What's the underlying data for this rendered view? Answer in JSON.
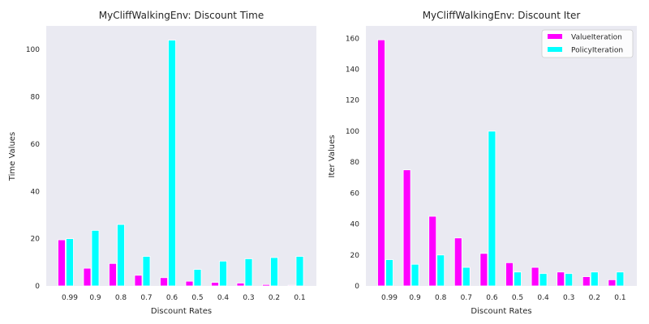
{
  "colors": {
    "value_iteration": "#ff00ff",
    "policy_iteration": "#00ffff",
    "plot_background": "#eaeaf2"
  },
  "chart_data": [
    {
      "type": "bar",
      "title": "MyCliffWalkingEnv: Discount Time",
      "xlabel": "Discount Rates",
      "ylabel": "Time Values",
      "categories": [
        "0.99",
        "0.9",
        "0.8",
        "0.7",
        "0.6",
        "0.5",
        "0.4",
        "0.3",
        "0.2",
        "0.1"
      ],
      "series": [
        {
          "values": [
            19.5,
            7.5,
            9.5,
            4.5,
            3.5,
            2,
            1.5,
            1.2,
            0.6,
            0.3
          ]
        },
        {
          "values": [
            20,
            23.5,
            26,
            12.5,
            104,
            7,
            10.5,
            11.5,
            12,
            12.5
          ]
        }
      ],
      "ylim": [
        0,
        110
      ],
      "yticks": [
        0,
        20,
        40,
        60,
        80,
        100
      ],
      "legend": false,
      "grid": false
    },
    {
      "type": "bar",
      "title": "MyCliffWalkingEnv: Discount Iter",
      "xlabel": "Discount Rates",
      "ylabel": "Iter Values",
      "categories": [
        "0.99",
        "0.9",
        "0.8",
        "0.7",
        "0.6",
        "0.5",
        "0.4",
        "0.3",
        "0.2",
        "0.1"
      ],
      "series": [
        {
          "name": "ValueIteration",
          "values": [
            159,
            75,
            45,
            31,
            21,
            15,
            12,
            9,
            6,
            4
          ]
        },
        {
          "name": "PolicyIteration",
          "values": [
            17,
            14,
            20,
            12,
            100,
            9,
            8,
            8,
            9,
            9
          ]
        }
      ],
      "ylim": [
        0,
        168
      ],
      "yticks": [
        0,
        20,
        40,
        60,
        80,
        100,
        120,
        140,
        160
      ],
      "legend": "top-right",
      "grid": false
    }
  ]
}
